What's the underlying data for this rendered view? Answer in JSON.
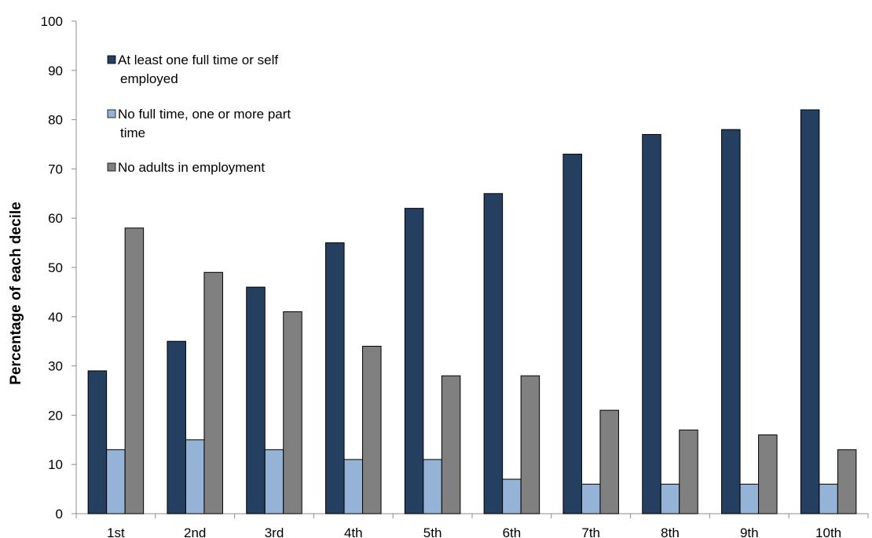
{
  "chart_data": {
    "type": "bar",
    "title": "",
    "xlabel": "",
    "ylabel": "Percentage of each decile",
    "ylim": [
      0,
      100
    ],
    "yticks": [
      0,
      10,
      20,
      30,
      40,
      50,
      60,
      70,
      80,
      90,
      100
    ],
    "grid": false,
    "legend_position": "top-left",
    "categories": [
      "1st",
      "2nd",
      "3rd",
      "4th",
      "5th",
      "6th",
      "7th",
      "8th",
      "9th",
      "10th"
    ],
    "series": [
      {
        "name": "At least one full time or self employed",
        "name_lines": [
          "At least one full time or self",
          "employed"
        ],
        "color": "#243F60",
        "values": [
          29,
          35,
          46,
          55,
          62,
          65,
          73,
          77,
          78,
          82
        ]
      },
      {
        "name": "No full time, one or more part time",
        "name_lines": [
          "No full time, one or more part",
          "time"
        ],
        "color": "#95B3D7",
        "values": [
          13,
          15,
          13,
          11,
          11,
          7,
          6,
          6,
          6,
          6
        ]
      },
      {
        "name": "No adults in employment",
        "name_lines": [
          "No adults in employment"
        ],
        "color": "#808080",
        "values": [
          58,
          49,
          41,
          34,
          28,
          28,
          21,
          17,
          16,
          13
        ]
      }
    ]
  }
}
